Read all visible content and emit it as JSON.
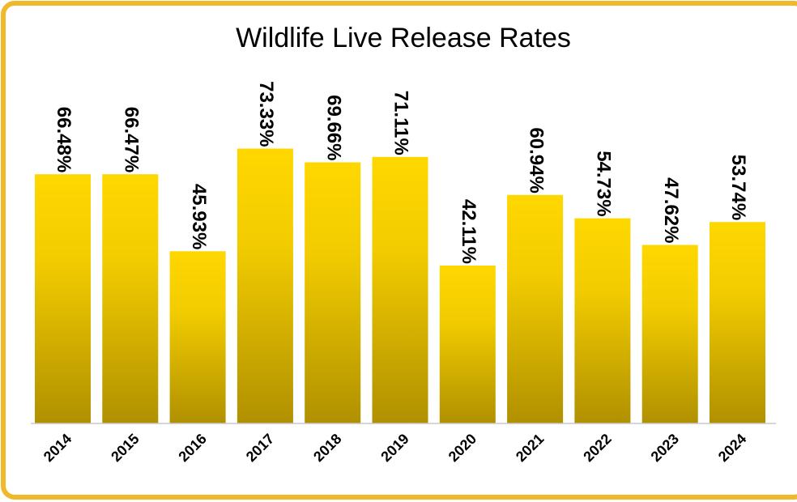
{
  "chart_data": {
    "type": "bar",
    "title": "Wildlife Live Release Rates",
    "xlabel": "",
    "ylabel": "",
    "categories": [
      "2014",
      "2015",
      "2016",
      "2017",
      "2018",
      "2019",
      "2020",
      "2021",
      "2022",
      "2023",
      "2024"
    ],
    "values": [
      66.48,
      66.47,
      45.93,
      73.33,
      69.66,
      71.11,
      42.11,
      60.94,
      54.73,
      47.62,
      53.74
    ],
    "value_labels": [
      "66.48%",
      "66.47%",
      "45.93%",
      "73.33%",
      "69.66%",
      "71.11%",
      "42.11%",
      "60.94%",
      "54.73%",
      "47.62%",
      "53.74%"
    ],
    "ylim": [
      0,
      100
    ],
    "grid": false,
    "legend": "none"
  },
  "colors": {
    "frame_border": "#F0B92C",
    "bar_top": "#FFD700",
    "bar_bottom": "#B09000",
    "axis_line": "#C8C8C8",
    "background": "#FFFFFF"
  }
}
